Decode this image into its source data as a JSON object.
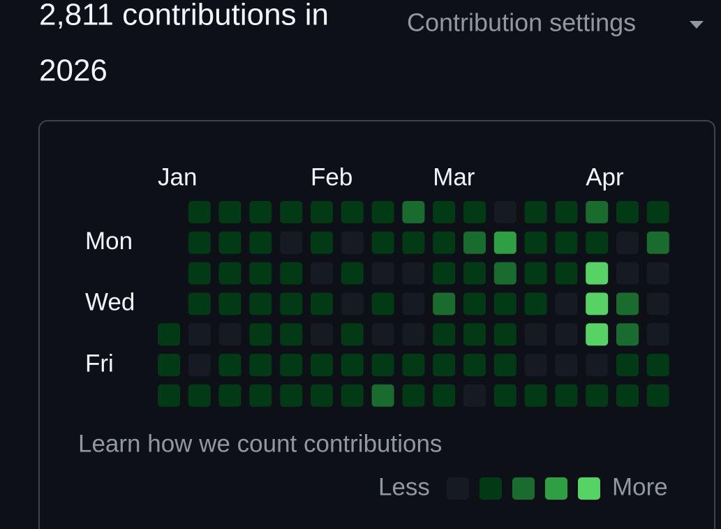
{
  "header": {
    "title": "2,811 contributions in 2026",
    "title_lines": [
      "2,811 contributions in",
      "2026"
    ],
    "settings": "Contribution settings"
  },
  "graph": {
    "months": [
      "Jan",
      "Feb",
      "Mar",
      "Apr"
    ],
    "days": [
      "Mon",
      "Wed",
      "Fri"
    ],
    "level_colors": [
      "#161b22",
      "#033a16",
      "#196c2e",
      "#2ea043",
      "#56d364"
    ],
    "weeks": [
      [
        null,
        null,
        null,
        null,
        1,
        1,
        1
      ],
      [
        1,
        1,
        1,
        1,
        0,
        0,
        1
      ],
      [
        1,
        1,
        1,
        1,
        0,
        1,
        1
      ],
      [
        1,
        1,
        1,
        1,
        1,
        1,
        1
      ],
      [
        1,
        0,
        1,
        1,
        1,
        1,
        1
      ],
      [
        1,
        1,
        0,
        1,
        0,
        1,
        1
      ],
      [
        1,
        0,
        1,
        0,
        1,
        1,
        1
      ],
      [
        1,
        1,
        0,
        1,
        0,
        1,
        2
      ],
      [
        2,
        1,
        0,
        0,
        0,
        1,
        1
      ],
      [
        1,
        1,
        1,
        2,
        1,
        1,
        1
      ],
      [
        1,
        2,
        1,
        1,
        1,
        1,
        0
      ],
      [
        0,
        3,
        2,
        1,
        1,
        1,
        1
      ],
      [
        1,
        1,
        1,
        1,
        0,
        0,
        1
      ],
      [
        1,
        1,
        1,
        0,
        0,
        0,
        1
      ],
      [
        2,
        1,
        4,
        4,
        4,
        0,
        1
      ],
      [
        1,
        0,
        0,
        2,
        2,
        1,
        1
      ],
      [
        1,
        2,
        0,
        0,
        0,
        1,
        1
      ]
    ],
    "link": "Learn how we count contributions",
    "legend": {
      "less": "Less",
      "more": "More",
      "levels": [
        0,
        1,
        2,
        3,
        4
      ]
    }
  }
}
